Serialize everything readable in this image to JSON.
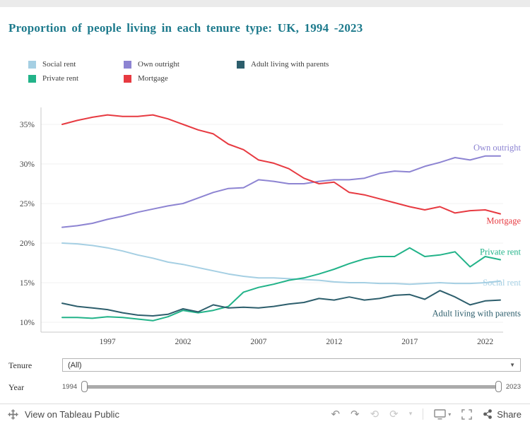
{
  "title": "Proportion of people living in each tenure type: UK, 1994 -2023",
  "colors": {
    "title": "#1d7a8c",
    "social_rent": "#a5cfe3",
    "private_rent": "#22b389",
    "own_outright": "#8d84d2",
    "mortgage": "#e73a41",
    "adult_parents": "#2d5e6c"
  },
  "legend": {
    "items": [
      {
        "label": "Social rent",
        "color": "#a5cfe3"
      },
      {
        "label": "Private rent",
        "color": "#22b389"
      },
      {
        "label": "Own outright",
        "color": "#8d84d2"
      },
      {
        "label": "Mortgage",
        "color": "#e73a41"
      },
      {
        "label": "Adult living with parents",
        "color": "#2d5e6c"
      }
    ]
  },
  "chart_data": {
    "type": "line",
    "title": "Proportion of people living in each tenure type: UK, 1994 -2023",
    "xlabel": "",
    "ylabel": "",
    "y_format": "percent",
    "ylim": [
      8.8,
      37.5
    ],
    "grid": "horizontal-faint",
    "legend_position": "top",
    "x": [
      1994,
      1995,
      1996,
      1997,
      1998,
      1999,
      2000,
      2001,
      2002,
      2003,
      2004,
      2005,
      2006,
      2007,
      2008,
      2009,
      2010,
      2011,
      2012,
      2013,
      2014,
      2015,
      2016,
      2017,
      2018,
      2019,
      2020,
      2021,
      2022,
      2023
    ],
    "xticks": [
      1997,
      2002,
      2007,
      2012,
      2017,
      2022
    ],
    "yticks": [
      10,
      15,
      20,
      25,
      30,
      35
    ],
    "series": [
      {
        "name": "Social rent",
        "color": "#a5cfe3",
        "values": [
          20.0,
          19.9,
          19.7,
          19.4,
          19.0,
          18.5,
          18.1,
          17.6,
          17.3,
          16.9,
          16.5,
          16.1,
          15.8,
          15.6,
          15.6,
          15.5,
          15.4,
          15.3,
          15.1,
          15.0,
          15.0,
          14.9,
          14.9,
          14.8,
          14.9,
          15.0,
          14.9,
          14.9,
          15.0,
          15.2
        ]
      },
      {
        "name": "Private rent",
        "color": "#22b389",
        "values": [
          10.6,
          10.6,
          10.5,
          10.7,
          10.6,
          10.4,
          10.2,
          10.7,
          11.5,
          11.2,
          11.5,
          12.0,
          13.8,
          14.4,
          14.8,
          15.3,
          15.6,
          16.1,
          16.7,
          17.4,
          18.0,
          18.3,
          18.3,
          19.4,
          18.3,
          18.5,
          18.9,
          17.0,
          18.3,
          17.9
        ]
      },
      {
        "name": "Own outright",
        "color": "#8d84d2",
        "values": [
          22.0,
          22.2,
          22.5,
          23.0,
          23.4,
          23.9,
          24.3,
          24.7,
          25.0,
          25.7,
          26.4,
          26.9,
          27.0,
          28.0,
          27.8,
          27.5,
          27.5,
          27.8,
          28.0,
          28.0,
          28.2,
          28.8,
          29.1,
          29.0,
          29.7,
          30.2,
          30.8,
          30.5,
          31.0,
          31.0
        ]
      },
      {
        "name": "Mortgage",
        "color": "#e73a41",
        "values": [
          35.0,
          35.5,
          35.9,
          36.2,
          36.0,
          36.0,
          36.2,
          35.7,
          35.0,
          34.3,
          33.8,
          32.5,
          31.8,
          30.5,
          30.1,
          29.4,
          28.2,
          27.5,
          27.7,
          26.4,
          26.1,
          25.6,
          25.1,
          24.6,
          24.2,
          24.6,
          23.8,
          24.1,
          24.2,
          23.7
        ]
      },
      {
        "name": "Adult living with parents",
        "color": "#2d5e6c",
        "values": [
          12.4,
          12.0,
          11.8,
          11.6,
          11.2,
          10.9,
          10.8,
          11.0,
          11.7,
          11.3,
          12.2,
          11.8,
          11.9,
          11.8,
          12.0,
          12.3,
          12.5,
          13.0,
          12.8,
          13.2,
          12.8,
          13.0,
          13.4,
          13.5,
          12.9,
          14.0,
          13.2,
          12.2,
          12.7,
          12.8
        ]
      }
    ]
  },
  "controls": {
    "tenure_label": "Tenure",
    "tenure_value": "(All)",
    "year_label": "Year",
    "year_min": "1994",
    "year_max": "2023"
  },
  "footer": {
    "view_text": "View on Tableau Public",
    "share_label": "Share",
    "icons": {
      "undo": "↶",
      "redo": "↷",
      "revert": "⟲",
      "refresh": "⟳",
      "caret": "▾"
    }
  }
}
